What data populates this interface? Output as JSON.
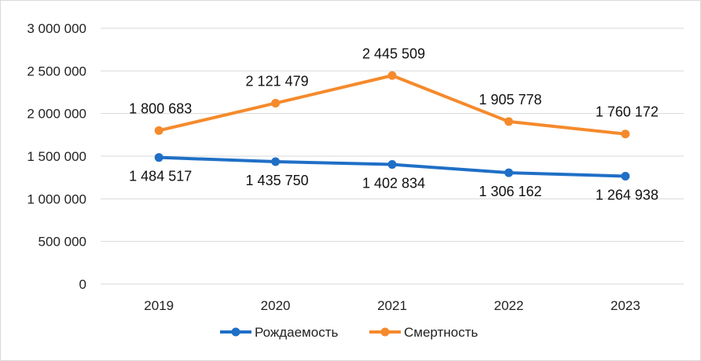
{
  "chart_data": {
    "type": "line",
    "title": "",
    "xlabel": "",
    "ylabel": "",
    "categories": [
      "2019",
      "2020",
      "2021",
      "2022",
      "2023"
    ],
    "ylim": [
      0,
      3000000
    ],
    "yticks": [
      0,
      500000,
      1000000,
      1500000,
      2000000,
      2500000,
      3000000
    ],
    "ytick_labels": [
      "0",
      "500 000",
      "1 000 000",
      "1 500 000",
      "2 000 000",
      "2 500 000",
      "3 000 000"
    ],
    "grid": true,
    "legend_position": "bottom",
    "series": [
      {
        "name": "Рождаемость",
        "color": "#1f6fc6",
        "values": [
          1484517,
          1435750,
          1402834,
          1306162,
          1264938
        ],
        "labels": [
          "1 484 517",
          "1 435 750",
          "1 402 834",
          "1 306 162",
          "1 264 938"
        ]
      },
      {
        "name": "Смертность",
        "color": "#f58a2c",
        "values": [
          1800683,
          2121479,
          2445509,
          1905778,
          1760172
        ],
        "labels": [
          "1 800 683",
          "2 121 479",
          "2 445 509",
          "1 905 778",
          "1 760 172"
        ]
      }
    ]
  }
}
